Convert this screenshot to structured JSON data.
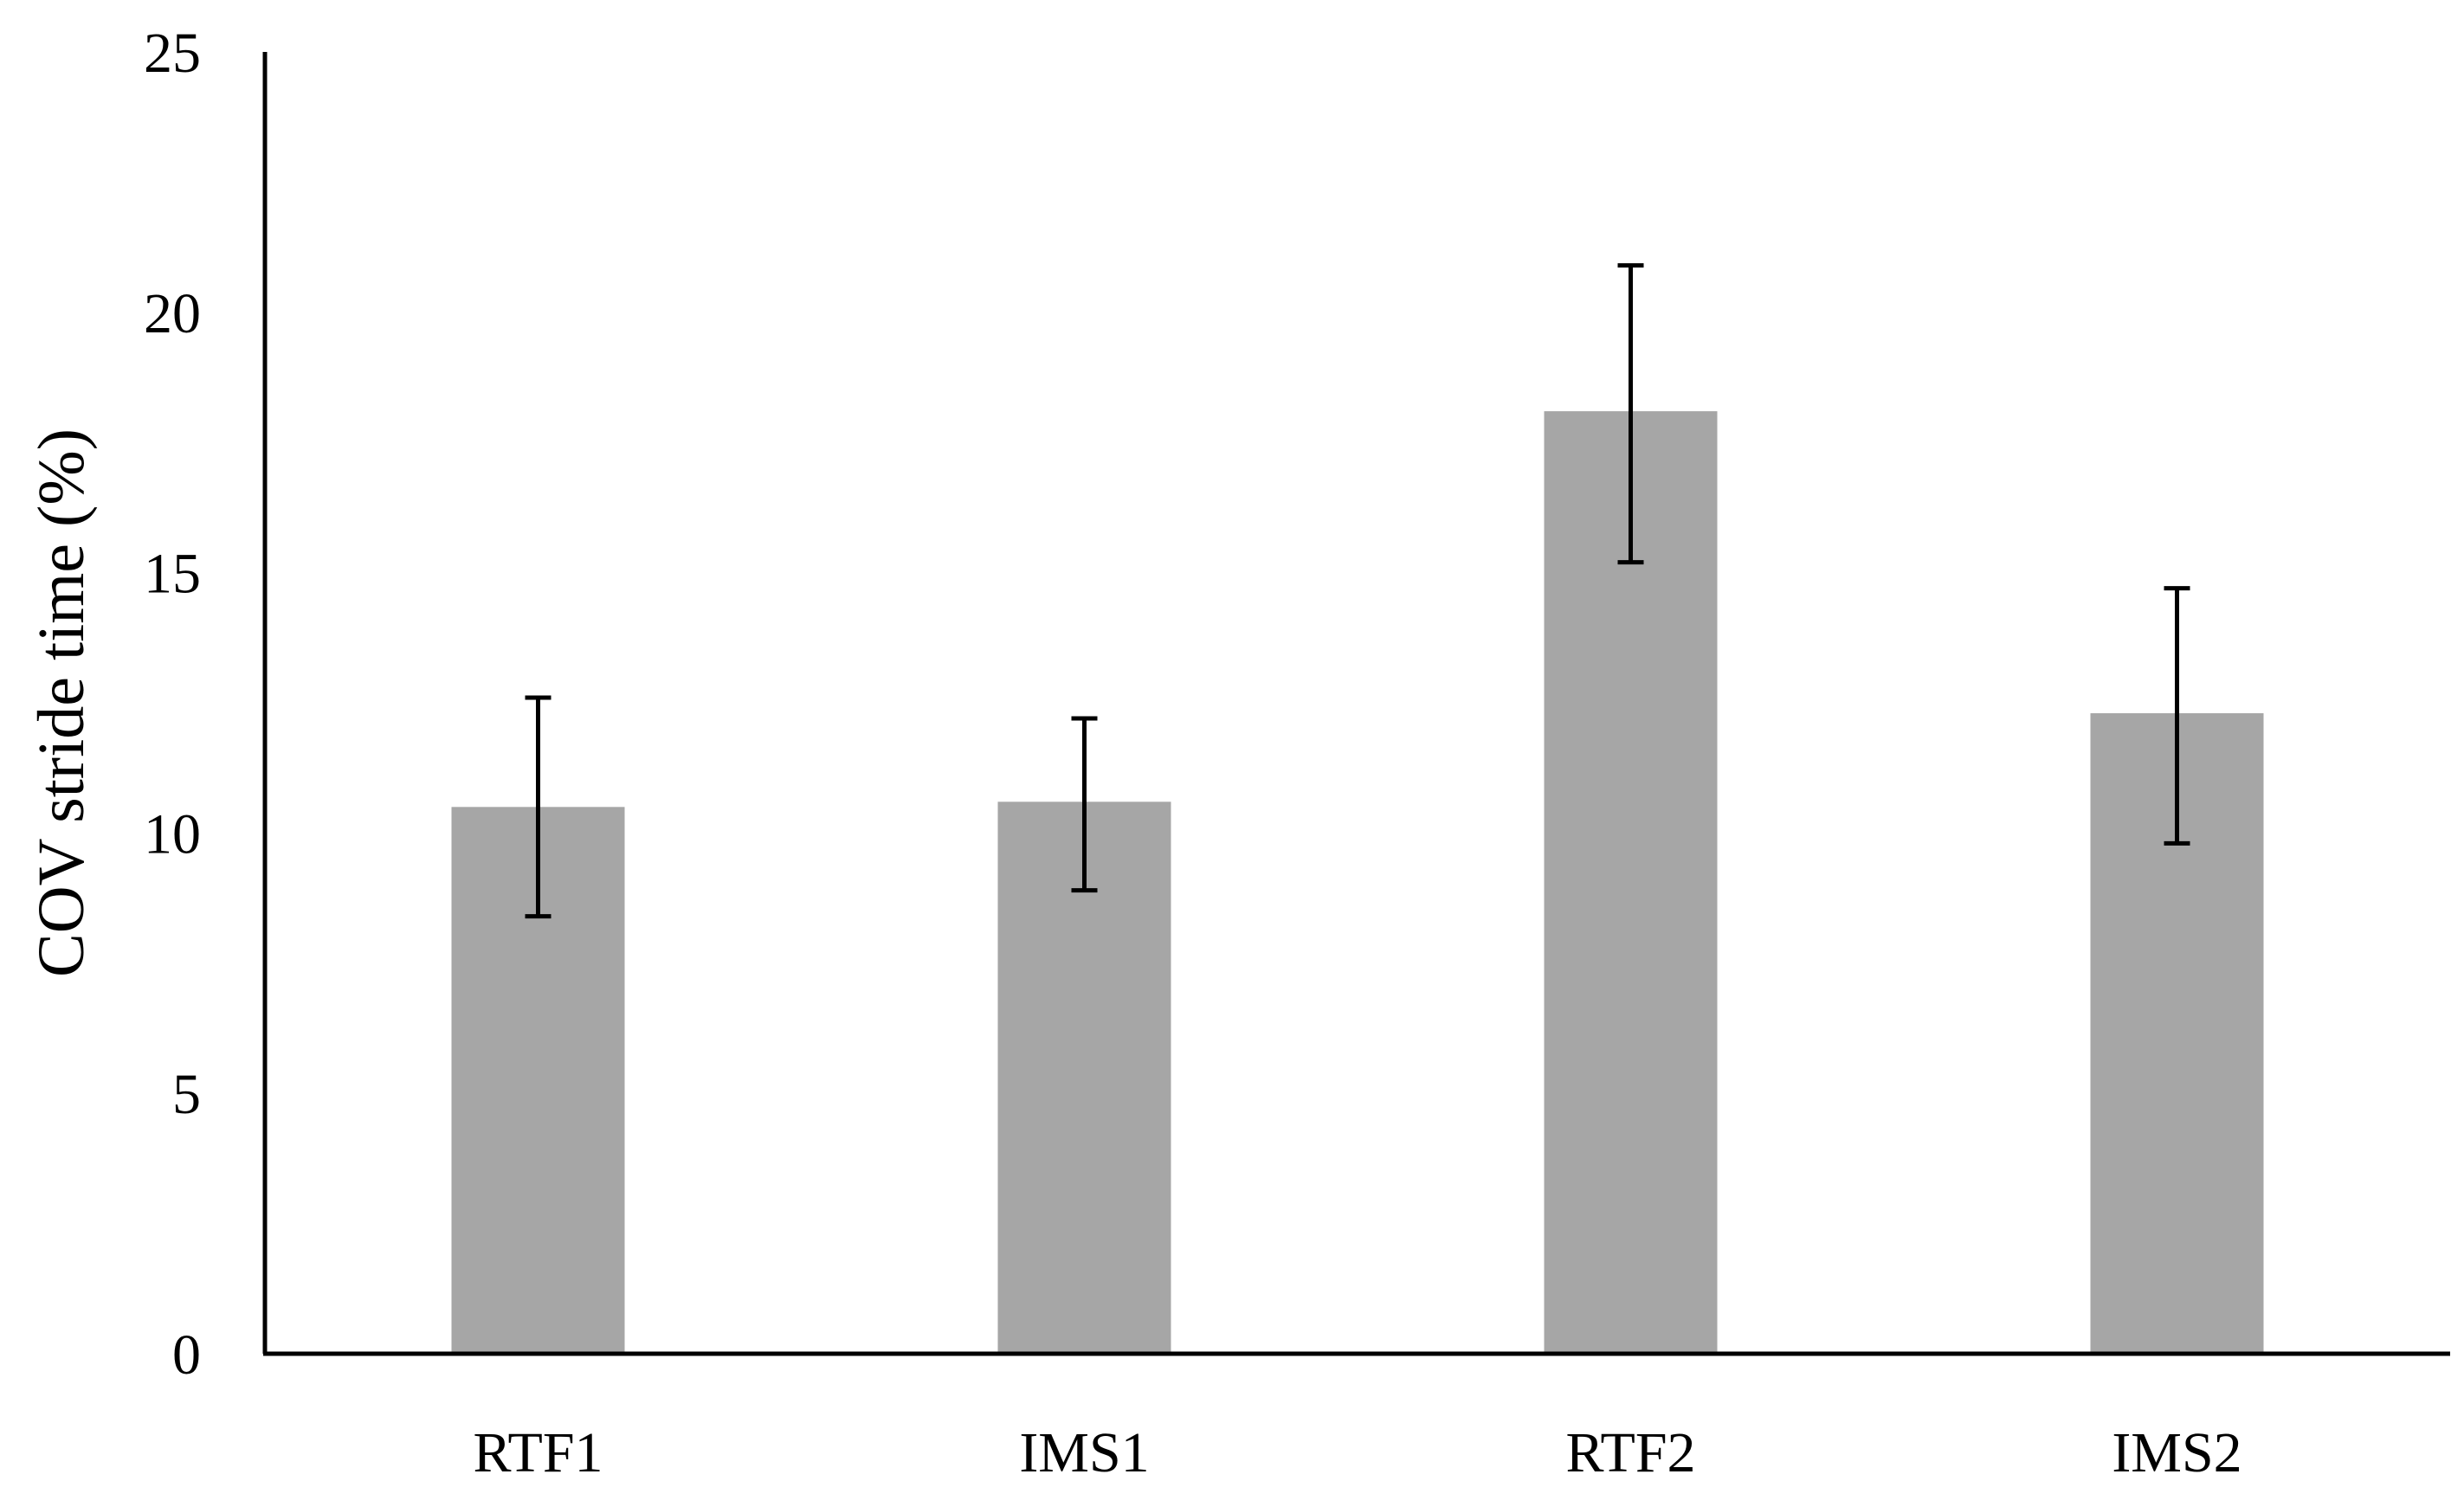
{
  "chart_data": {
    "type": "bar",
    "title": "",
    "xlabel": "",
    "ylabel": "COV stride time (%)",
    "ylim": [
      0,
      25
    ],
    "yticks": [
      0,
      5,
      10,
      15,
      20,
      25
    ],
    "grid": false,
    "legend": "none",
    "categories": [
      "RTF1",
      "IMS1",
      "RTF2",
      "IMS2"
    ],
    "series": [
      {
        "values": [
          10.5,
          10.6,
          18.1,
          12.3
        ],
        "error_low": [
          8.4,
          8.9,
          15.2,
          9.8
        ],
        "error_high": [
          12.6,
          12.2,
          20.9,
          14.7
        ]
      }
    ],
    "colors": {
      "bar": "#a6a6a6",
      "error_bar": "#000000",
      "axis": "#000000"
    }
  }
}
